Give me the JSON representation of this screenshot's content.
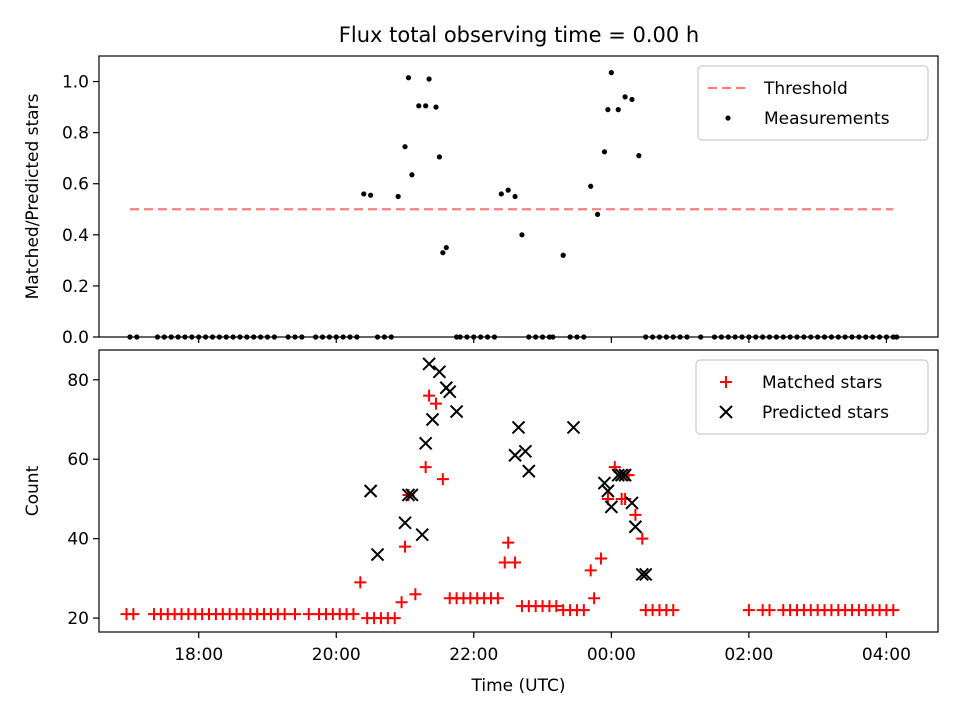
{
  "title": "Flux total observing time = 0.00 h",
  "chart_data": [
    {
      "type": "scatter",
      "ylabel": "Matched/Predicted stars",
      "xlim": [
        16.55,
        28.75
      ],
      "ylim": [
        0,
        1.1
      ],
      "yticks": [
        0.0,
        0.2,
        0.4,
        0.6,
        0.8,
        1.0
      ],
      "ytick_labels": [
        "0.0",
        "0.2",
        "0.4",
        "0.6",
        "0.8",
        "1.0"
      ],
      "threshold": {
        "name": "Threshold",
        "value": 0.5,
        "x_start": 17.0,
        "x_end": 28.1,
        "color": "#ff7f7f"
      },
      "legend": {
        "position": "top-right",
        "entries": [
          "Threshold",
          "Measurements"
        ]
      },
      "series": [
        {
          "name": "Measurements",
          "color": "#000000",
          "x": [
            17.0,
            17.1,
            17.4,
            17.5,
            17.6,
            17.7,
            17.8,
            17.9,
            18.0,
            18.1,
            18.2,
            18.3,
            18.4,
            18.5,
            18.6,
            18.7,
            18.8,
            18.9,
            19.0,
            19.1,
            19.3,
            19.4,
            19.5,
            19.7,
            19.8,
            19.9,
            20.0,
            20.1,
            20.2,
            20.3,
            20.4,
            20.5,
            20.6,
            20.7,
            20.8,
            20.9,
            21.0,
            21.05,
            21.1,
            21.2,
            21.3,
            21.35,
            21.45,
            21.5,
            21.55,
            21.6,
            21.75,
            21.8,
            21.9,
            22.0,
            22.1,
            22.2,
            22.3,
            22.4,
            22.5,
            22.6,
            22.7,
            22.8,
            22.9,
            23.0,
            23.1,
            23.15,
            23.3,
            23.4,
            23.5,
            23.6,
            23.7,
            23.8,
            23.9,
            23.95,
            24.0,
            24.1,
            24.2,
            24.3,
            24.4,
            24.5,
            24.6,
            24.7,
            24.8,
            24.9,
            25.0,
            25.1,
            25.3,
            25.5,
            25.6,
            25.7,
            25.8,
            25.9,
            26.0,
            26.1,
            26.2,
            26.3,
            26.4,
            26.5,
            26.6,
            26.7,
            26.8,
            26.9,
            27.0,
            27.1,
            27.2,
            27.3,
            27.4,
            27.5,
            27.6,
            27.7,
            27.8,
            27.9,
            28.0,
            28.1,
            28.15
          ],
          "y": [
            0,
            0,
            0,
            0,
            0,
            0,
            0,
            0,
            0,
            0,
            0,
            0,
            0,
            0,
            0,
            0,
            0,
            0,
            0,
            0,
            0,
            0,
            0,
            0,
            0,
            0,
            0,
            0,
            0,
            0,
            0.56,
            0.555,
            0,
            0,
            0,
            0.55,
            0.745,
            1.015,
            0.635,
            0.905,
            0.905,
            1.01,
            0.9,
            0.705,
            0.33,
            0.35,
            0,
            0,
            0,
            0,
            0,
            0,
            0,
            0.56,
            0.575,
            0.55,
            0.4,
            0,
            0,
            0,
            0,
            0,
            0.32,
            0,
            0,
            0,
            0.59,
            0.48,
            0.725,
            0.89,
            1.035,
            0.89,
            0.94,
            0.93,
            0.71,
            0,
            0,
            0,
            0,
            0,
            0,
            0,
            0,
            0,
            0,
            0,
            0,
            0,
            0,
            0,
            0,
            0,
            0,
            0,
            0,
            0,
            0,
            0,
            0,
            0,
            0,
            0,
            0,
            0,
            0,
            0,
            0,
            0,
            0,
            0,
            0
          ]
        }
      ]
    },
    {
      "type": "scatter",
      "xlabel": "Time (UTC)",
      "ylabel": "Count",
      "xlim": [
        16.55,
        28.75
      ],
      "ylim": [
        16.5,
        87.5
      ],
      "yticks": [
        20,
        40,
        60,
        80
      ],
      "ytick_labels": [
        "20",
        "40",
        "60",
        "80"
      ],
      "xticks": [
        18,
        20,
        22,
        24,
        26,
        28
      ],
      "xtick_labels": [
        "18:00",
        "20:00",
        "22:00",
        "00:00",
        "02:00",
        "04:00"
      ],
      "legend": {
        "position": "top-right",
        "entries": [
          "Matched stars",
          "Predicted stars"
        ]
      },
      "series": [
        {
          "name": "Matched stars",
          "marker": "plus",
          "color": "#ff0000",
          "x": [
            16.95,
            17.05,
            17.35,
            17.45,
            17.55,
            17.65,
            17.75,
            17.85,
            17.95,
            18.05,
            18.15,
            18.25,
            18.35,
            18.45,
            18.55,
            18.65,
            18.75,
            18.85,
            18.95,
            19.05,
            19.15,
            19.25,
            19.4,
            19.6,
            19.75,
            19.85,
            19.95,
            20.05,
            20.15,
            20.25,
            20.35,
            20.45,
            20.55,
            20.65,
            20.75,
            20.85,
            20.95,
            21.0,
            21.05,
            21.15,
            21.3,
            21.35,
            21.45,
            21.55,
            21.65,
            21.75,
            21.85,
            21.95,
            22.05,
            22.15,
            22.25,
            22.35,
            22.45,
            22.5,
            22.6,
            22.7,
            22.8,
            22.9,
            23.0,
            23.1,
            23.2,
            23.3,
            23.4,
            23.5,
            23.6,
            23.7,
            23.75,
            23.85,
            23.95,
            24.05,
            24.15,
            24.2,
            24.25,
            24.35,
            24.45,
            24.5,
            24.6,
            24.7,
            24.8,
            24.9,
            26.0,
            26.2,
            26.3,
            26.5,
            26.6,
            26.7,
            26.8,
            26.9,
            27.0,
            27.1,
            27.2,
            27.3,
            27.4,
            27.5,
            27.6,
            27.7,
            27.8,
            27.9,
            28.0,
            28.1
          ],
          "y": [
            21,
            21,
            21,
            21,
            21,
            21,
            21,
            21,
            21,
            21,
            21,
            21,
            21,
            21,
            21,
            21,
            21,
            21,
            21,
            21,
            21,
            21,
            21,
            21,
            21,
            21,
            21,
            21,
            21,
            21,
            29,
            20,
            20,
            20,
            20,
            20,
            24,
            38,
            51,
            26,
            58,
            76,
            74,
            55,
            25,
            25,
            25,
            25,
            25,
            25,
            25,
            25,
            34,
            39,
            34,
            23,
            23,
            23,
            23,
            23,
            23,
            22,
            22,
            22,
            22,
            32,
            25,
            35,
            50,
            58,
            50,
            50,
            56,
            46,
            40,
            22,
            22,
            22,
            22,
            22,
            22,
            22,
            22,
            22,
            22,
            22,
            22,
            22,
            22,
            22,
            22,
            22,
            22,
            22,
            22,
            22,
            22,
            22,
            22,
            22
          ]
        },
        {
          "name": "Predicted stars",
          "marker": "x",
          "color": "#000000",
          "x": [
            20.5,
            20.6,
            21.0,
            21.05,
            21.1,
            21.25,
            21.3,
            21.35,
            21.4,
            21.5,
            21.6,
            21.65,
            21.75,
            22.6,
            22.65,
            22.75,
            22.8,
            23.45,
            23.9,
            23.95,
            24.0,
            24.1,
            24.15,
            24.2,
            24.3,
            24.35,
            24.45,
            24.5
          ],
          "y": [
            52,
            36,
            44,
            51,
            51,
            41,
            64,
            84,
            70,
            82,
            78,
            77,
            72,
            61,
            68,
            62,
            57,
            68,
            54,
            52,
            48,
            56,
            56,
            56,
            49,
            43,
            31,
            31
          ]
        }
      ]
    }
  ]
}
